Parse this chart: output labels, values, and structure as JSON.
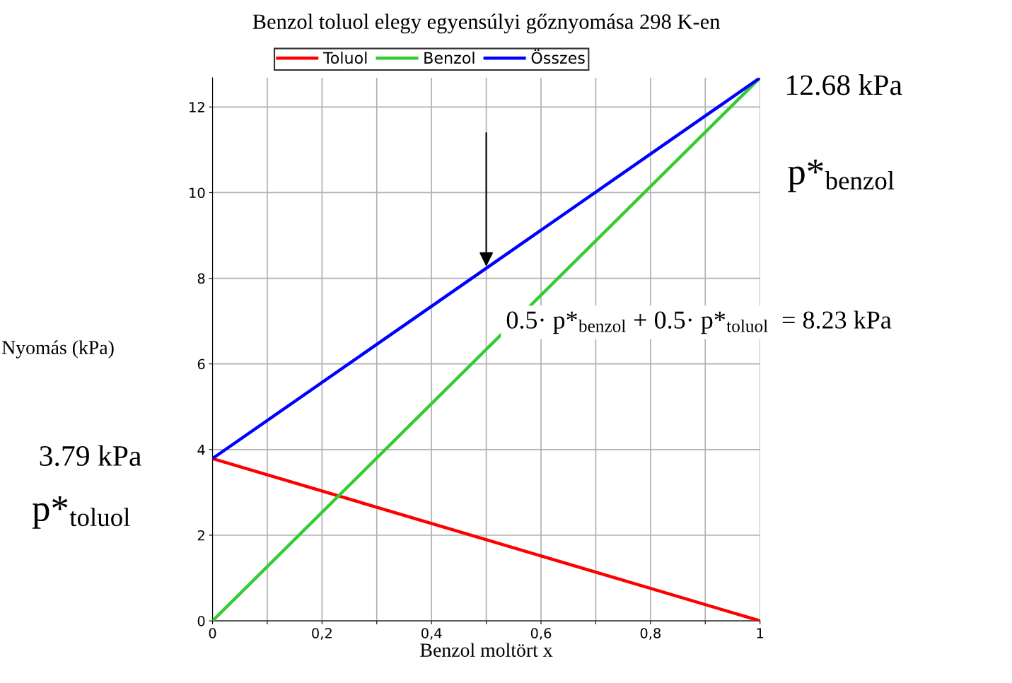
{
  "chart_data": {
    "type": "line",
    "title": "Benzol toluol elegy egyensúlyi gőznyomása 298 K-en",
    "xlabel": "Benzol moltört x",
    "ylabel": "Nyomás (kPa)",
    "x": [
      0,
      1
    ],
    "series": [
      {
        "name": "Toluol",
        "color": "#ff0000",
        "values": [
          3.79,
          0
        ]
      },
      {
        "name": "Benzol",
        "color": "#33cc33",
        "values": [
          0,
          12.68
        ]
      },
      {
        "name": "Összes",
        "color": "#0000ff",
        "values": [
          3.79,
          12.68
        ]
      }
    ],
    "xlim": [
      0,
      1
    ],
    "ylim": [
      0,
      12.68
    ],
    "xticks": [
      {
        "value": 0,
        "label": "0"
      },
      {
        "value": 0.1,
        "label": null
      },
      {
        "value": 0.2,
        "label": "0,2"
      },
      {
        "value": 0.3,
        "label": null
      },
      {
        "value": 0.4,
        "label": "0,4"
      },
      {
        "value": 0.5,
        "label": null
      },
      {
        "value": 0.6,
        "label": "0,6"
      },
      {
        "value": 0.7,
        "label": null
      },
      {
        "value": 0.8,
        "label": "0,8"
      },
      {
        "value": 0.9,
        "label": null
      },
      {
        "value": 1,
        "label": "1"
      }
    ],
    "yticks": [
      0,
      2,
      4,
      6,
      8,
      10,
      12
    ],
    "grid": true,
    "legend": "top",
    "marker": "none",
    "line_style": "solid",
    "annotations": [
      {
        "text": "12.68 kPa",
        "x": 1,
        "y": 12.68
      },
      "p*$_{benzol}$",
      {
        "text": "3.79 kPa",
        "x": 0,
        "y": 3.79
      },
      "p*$_{toluol}$",
      {
        "text": "0.5· p*$_{benzol}$ + 0.5· p*$_{toluol}$  = 8.23 kPa",
        "x": 0.5,
        "y": 8.23
      }
    ]
  }
}
